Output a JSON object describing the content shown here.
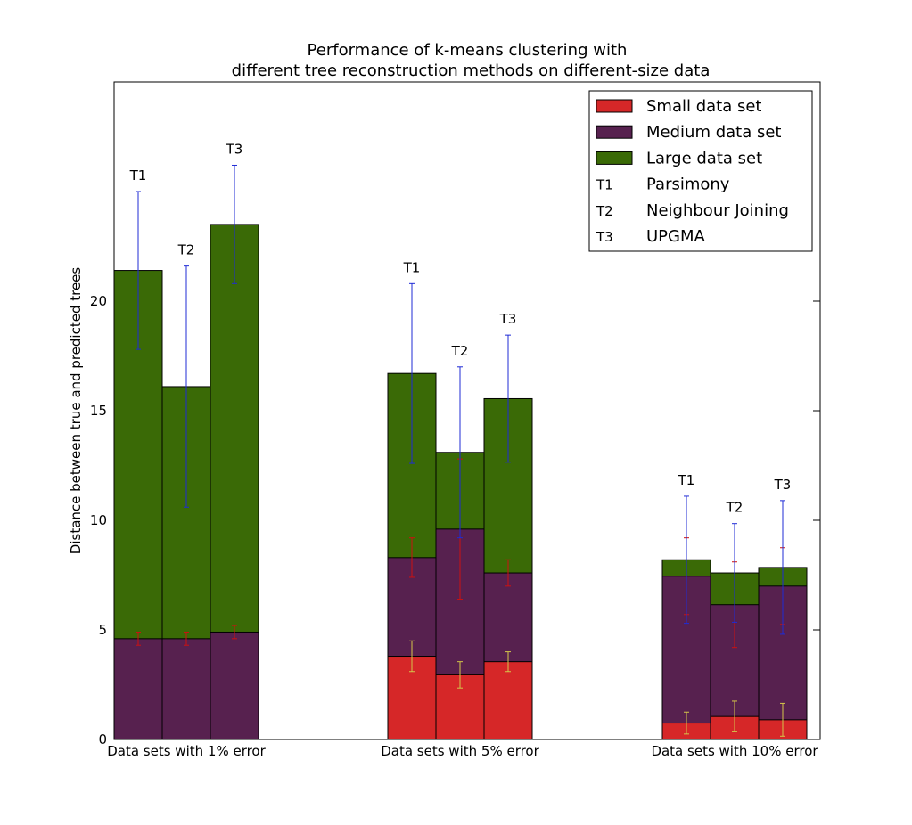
{
  "chart_data": {
    "type": "bar",
    "stacked": true,
    "title": "Performance of k-means clustering with",
    "subtitle": "different tree reconstruction methods on different-size data",
    "xlabel": "",
    "ylabel": "Distance between true and predicted trees",
    "ylim": [
      0,
      30
    ],
    "yticks": [
      "0",
      "5",
      "10",
      "15",
      "20"
    ],
    "categories": [
      "Data sets with 1% error",
      "Data sets with 5% error",
      "Data sets with 10% error"
    ],
    "methods": [
      "T1",
      "T2",
      "T3"
    ],
    "series": [
      {
        "name": "Small data set",
        "color": "#d62728",
        "values": [
          [
            0,
            0,
            0
          ],
          [
            3.8,
            2.95,
            3.55
          ],
          [
            0.75,
            1.05,
            0.9
          ]
        ],
        "errors": [
          [
            0,
            0,
            0
          ],
          [
            0.7,
            0.6,
            0.45
          ],
          [
            0.5,
            0.7,
            0.75
          ]
        ],
        "error_color": "#d4c64a"
      },
      {
        "name": "Medium data set",
        "color": "#57214f",
        "values": [
          [
            4.6,
            4.6,
            4.9
          ],
          [
            8.3,
            9.6,
            7.6
          ],
          [
            7.45,
            6.15,
            7.0
          ]
        ],
        "errors": [
          [
            0.3,
            0.3,
            0.3
          ],
          [
            0.9,
            3.2,
            0.6
          ],
          [
            1.75,
            1.95,
            1.75
          ]
        ],
        "error_color": "#cc1111"
      },
      {
        "name": "Large data set",
        "color": "#3a6a06",
        "values": [
          [
            21.4,
            16.1,
            23.5
          ],
          [
            16.7,
            13.1,
            15.55
          ],
          [
            8.2,
            7.6,
            7.85
          ]
        ],
        "errors": [
          [
            3.6,
            5.5,
            2.7
          ],
          [
            4.1,
            3.9,
            2.9
          ],
          [
            2.9,
            2.25,
            3.05
          ]
        ],
        "error_color": "#1f2bd6"
      }
    ],
    "legend": {
      "placement": "top-right",
      "method_entries": [
        {
          "code": "T1",
          "label": "Parsimony"
        },
        {
          "code": "T2",
          "label": "Neighbour Joining"
        },
        {
          "code": "T3",
          "label": "UPGMA"
        }
      ]
    },
    "grid": false
  }
}
